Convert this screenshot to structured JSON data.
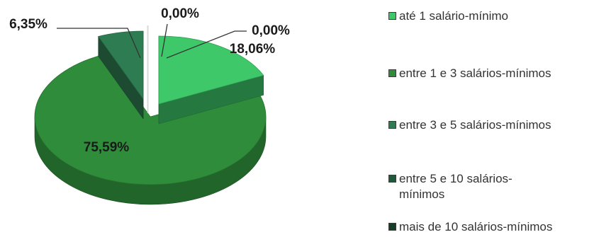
{
  "chart_data": {
    "type": "pie",
    "categories": [
      "até 1 salário-mínimo",
      "entre 1 e 3 salários-mínimos",
      "entre 3 e 5 salários-mínimos",
      "entre 5 e 10 salários-mínimos",
      "mais de 10 salários-mínimos"
    ],
    "values": [
      18.06,
      75.59,
      6.35,
      0.0,
      0.0
    ],
    "data_labels": [
      "18,06%",
      "75,59%",
      "6,35%",
      "0,00%",
      "0,00%"
    ],
    "colors": [
      "#3ec86a",
      "#2f8c3a",
      "#2e7d52",
      "#1d5a3c",
      "#173d28"
    ],
    "exploded": true,
    "style": "3d",
    "legend_position": "right"
  }
}
